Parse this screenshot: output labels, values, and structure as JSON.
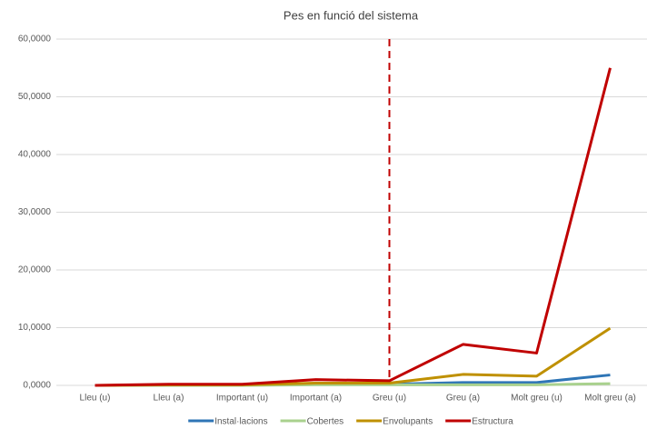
{
  "chart_data": {
    "type": "line",
    "title": "Pes en funció del sistema",
    "categories": [
      "Lleu (u)",
      "Lleu (a)",
      "Important (u)",
      "Important (a)",
      "Greu (u)",
      "Greu (a)",
      "Molt greu (u)",
      "Molt greu (a)"
    ],
    "series": [
      {
        "name": "Instal·lacions",
        "color": "#2e75b6",
        "values": [
          0,
          0,
          0.1,
          0.2,
          0.2,
          0.5,
          0.5,
          1.8
        ]
      },
      {
        "name": "Cobertes",
        "color": "#a9d18e",
        "values": [
          0,
          0,
          0,
          0.1,
          0.1,
          0.1,
          0.1,
          0.3
        ]
      },
      {
        "name": "Envolupants",
        "color": "#bf9000",
        "values": [
          0,
          0.1,
          0.1,
          0.4,
          0.4,
          1.9,
          1.6,
          9.9
        ]
      },
      {
        "name": "Estructura",
        "color": "#c00000",
        "values": [
          0,
          0.2,
          0.2,
          1.0,
          0.8,
          7.1,
          5.6,
          55
        ]
      }
    ],
    "ylim": [
      0,
      60
    ],
    "yticks": [
      {
        "value": 0,
        "label": "0,0000"
      },
      {
        "value": 10,
        "label": "10,0000"
      },
      {
        "value": 20,
        "label": "20,0000"
      },
      {
        "value": 30,
        "label": "30,0000"
      },
      {
        "value": 40,
        "label": "40,0000"
      },
      {
        "value": 50,
        "label": "50,0000"
      },
      {
        "value": 60,
        "label": "60,0000"
      }
    ],
    "grid": true,
    "legend": "bottom"
  }
}
